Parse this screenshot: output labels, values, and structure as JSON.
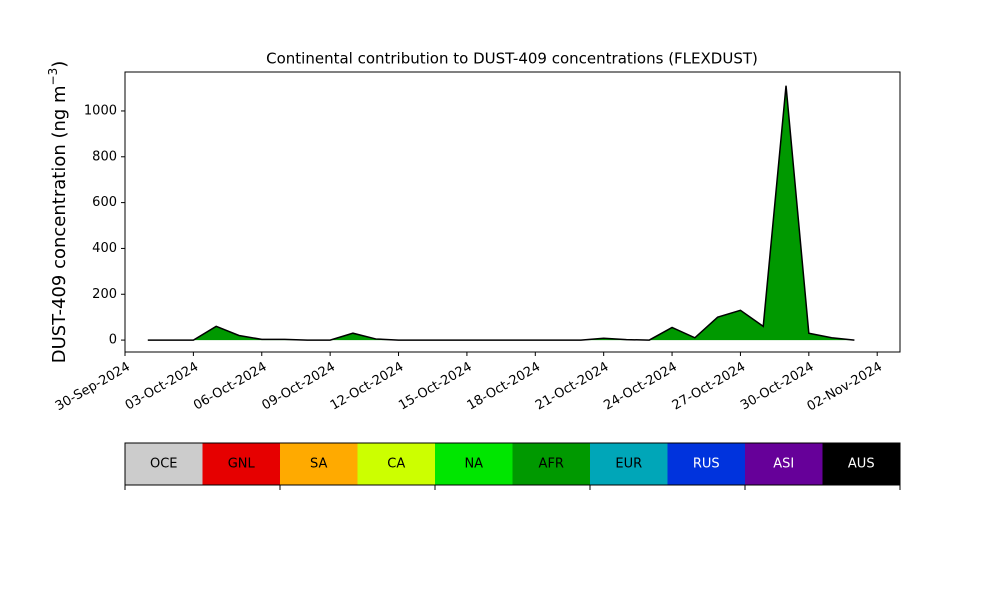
{
  "chart_data": {
    "type": "area",
    "title": "Continental contribution to DUST-409 concentrations (FLEXDUST)",
    "ylabel": [
      "DUST-409 concentration (ng m",
      "−3",
      ")"
    ],
    "x": [
      "2024-10-01",
      "2024-10-02",
      "2024-10-03",
      "2024-10-04",
      "2024-10-05",
      "2024-10-06",
      "2024-10-07",
      "2024-10-08",
      "2024-10-09",
      "2024-10-10",
      "2024-10-11",
      "2024-10-12",
      "2024-10-13",
      "2024-10-14",
      "2024-10-15",
      "2024-10-16",
      "2024-10-17",
      "2024-10-18",
      "2024-10-19",
      "2024-10-20",
      "2024-10-21",
      "2024-10-22",
      "2024-10-23",
      "2024-10-24",
      "2024-10-25",
      "2024-10-26",
      "2024-10-27",
      "2024-10-28",
      "2024-10-29",
      "2024-10-30",
      "2024-10-31",
      "2024-11-01"
    ],
    "values": [
      0,
      0,
      0,
      60,
      20,
      3,
      3,
      0,
      0,
      30,
      5,
      0,
      0,
      0,
      0,
      0,
      0,
      0,
      0,
      0,
      8,
      2,
      0,
      55,
      10,
      100,
      130,
      60,
      1110,
      30,
      10,
      0
    ],
    "color": "#009900",
    "line_color": "#000000",
    "xlim": [
      "2024-09-30",
      "2024-11-03"
    ],
    "xticks": [
      {
        "value": "2024-09-30",
        "label": "30-Sep-2024"
      },
      {
        "value": "2024-10-03",
        "label": "03-Oct-2024"
      },
      {
        "value": "2024-10-06",
        "label": "06-Oct-2024"
      },
      {
        "value": "2024-10-09",
        "label": "09-Oct-2024"
      },
      {
        "value": "2024-10-12",
        "label": "12-Oct-2024"
      },
      {
        "value": "2024-10-15",
        "label": "15-Oct-2024"
      },
      {
        "value": "2024-10-18",
        "label": "18-Oct-2024"
      },
      {
        "value": "2024-10-21",
        "label": "21-Oct-2024"
      },
      {
        "value": "2024-10-24",
        "label": "24-Oct-2024"
      },
      {
        "value": "2024-10-27",
        "label": "27-Oct-2024"
      },
      {
        "value": "2024-10-30",
        "label": "30-Oct-2024"
      },
      {
        "value": "2024-11-02",
        "label": "02-Nov-2024"
      }
    ],
    "ylim": [
      -52,
      1170
    ],
    "yticks": [
      0,
      200,
      400,
      600,
      800,
      1000
    ],
    "legend": [
      {
        "name": "OCE",
        "color": "#cccccc"
      },
      {
        "name": "GNL",
        "color": "#e60000"
      },
      {
        "name": "SA",
        "color": "#ffaa00"
      },
      {
        "name": "CA",
        "color": "#ccff00"
      },
      {
        "name": "NA",
        "color": "#00e600"
      },
      {
        "name": "AFR",
        "color": "#009900"
      },
      {
        "name": "EUR",
        "color": "#00a6b8"
      },
      {
        "name": "RUS",
        "color": "#0033dd"
      },
      {
        "name": "ASI",
        "color": "#660099"
      },
      {
        "name": "AUS",
        "color": "#000000"
      }
    ]
  }
}
